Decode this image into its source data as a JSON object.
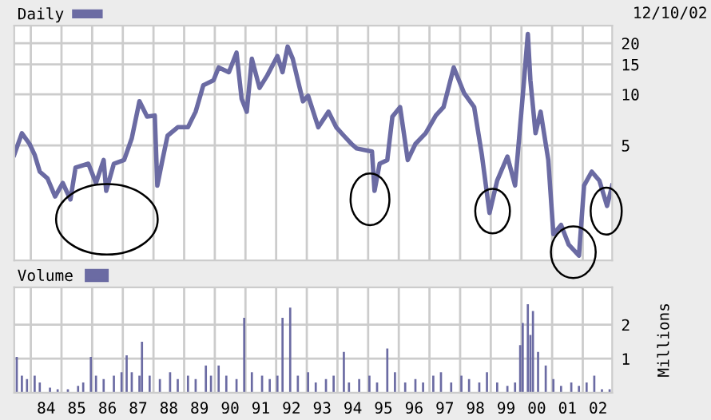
{
  "chart_data": [
    {
      "type": "line",
      "log": "y",
      "legend": "top left",
      "grid": true,
      "tick_labels": "y",
      "annotations": [
        "12/10/02"
      ],
      "xlim": [
        "1983-06",
        "2002-12"
      ],
      "ylim": [
        1.05,
        25.4
      ],
      "xticks": [
        {
          "value": "1984",
          "label": null
        },
        {
          "value": "1985",
          "label": null
        },
        {
          "value": "1986",
          "label": null
        },
        {
          "value": "1987",
          "label": null
        },
        {
          "value": "1988",
          "label": null
        },
        {
          "value": "1989",
          "label": null
        },
        {
          "value": "1990",
          "label": null
        },
        {
          "value": "1991",
          "label": null
        },
        {
          "value": "1992",
          "label": null
        },
        {
          "value": "1993",
          "label": null
        },
        {
          "value": "1994",
          "label": null
        },
        {
          "value": "1995",
          "label": null
        },
        {
          "value": "1996",
          "label": null
        },
        {
          "value": "1997",
          "label": null
        },
        {
          "value": "1998",
          "label": null
        },
        {
          "value": "1999",
          "label": null
        },
        {
          "value": "2000",
          "label": null
        },
        {
          "value": "2001",
          "label": null
        },
        {
          "value": "2002",
          "label": null
        }
      ],
      "yticks": [
        5,
        10,
        15,
        20
      ],
      "series": [
        {
          "name": "Daily",
          "color": "#6b6ba3",
          "x": [
            "1983-06",
            "1983-09",
            "1983-12",
            "1984-02",
            "1984-04",
            "1984-07",
            "1984-10",
            "1985-01",
            "1985-04",
            "1985-06",
            "1985-11",
            "1986-02",
            "1986-05",
            "1986-06",
            "1986-09",
            "1987-01",
            "1987-04",
            "1987-07",
            "1987-10",
            "1988-01",
            "1988-02",
            "1988-04",
            "1988-06",
            "1988-10",
            "1989-02",
            "1989-05",
            "1989-08",
            "1989-12",
            "1990-02",
            "1990-06",
            "1990-09",
            "1990-11",
            "1991-01",
            "1991-03",
            "1991-06",
            "1991-09",
            "1992-01",
            "1992-03",
            "1992-05",
            "1992-07",
            "1992-09",
            "1992-11",
            "1993-01",
            "1993-05",
            "1993-09",
            "1993-12",
            "1994-03",
            "1994-06",
            "1994-08",
            "1995-02",
            "1995-03",
            "1995-05",
            "1995-08",
            "1995-10",
            "1996-01",
            "1996-04",
            "1996-07",
            "1996-11",
            "1997-03",
            "1997-06",
            "1997-10",
            "1998-02",
            "1998-06",
            "1998-09",
            "1998-12",
            "1999-03",
            "1999-07",
            "1999-10",
            "2000-01",
            "2000-03",
            "2000-04",
            "2000-06",
            "2000-08",
            "2000-11",
            "2001-01",
            "2001-04",
            "2001-07",
            "2001-11",
            "2002-01",
            "2002-04",
            "2002-07",
            "2002-10",
            "2002-12"
          ],
          "values": [
            4.4,
            5.9,
            5.1,
            4.4,
            3.5,
            3.2,
            2.5,
            3.0,
            2.4,
            3.7,
            3.9,
            3.0,
            4.1,
            2.7,
            3.9,
            4.1,
            5.5,
            9.1,
            7.4,
            7.5,
            2.9,
            4.1,
            5.7,
            6.4,
            6.4,
            7.9,
            11.3,
            12.1,
            14.4,
            13.5,
            17.6,
            9.4,
            7.9,
            16.2,
            10.9,
            12.9,
            16.8,
            13.5,
            19.1,
            16.2,
            12.1,
            9.1,
            9.8,
            6.4,
            7.9,
            6.4,
            5.7,
            5.1,
            4.8,
            4.6,
            2.7,
            3.9,
            4.1,
            7.4,
            8.4,
            4.1,
            5.1,
            5.9,
            7.5,
            8.4,
            14.4,
            10.2,
            8.4,
            4.4,
            2.0,
            3.1,
            4.3,
            2.9,
            9.8,
            22.7,
            12.1,
            5.9,
            7.9,
            4.1,
            1.5,
            1.7,
            1.3,
            1.12,
            2.9,
            3.5,
            3.1,
            2.2,
            2.9
          ]
        }
      ]
    },
    {
      "type": "bar",
      "legend": "top left",
      "grid": true,
      "ylabel": "Millions",
      "xlim": [
        "1983-06",
        "2002-12"
      ],
      "ylim": [
        0,
        3.1
      ],
      "xticks": [
        {
          "value": "1984",
          "label": null
        },
        {
          "value": "1984-07-01",
          "label": "84"
        },
        {
          "value": "1985",
          "label": null
        },
        {
          "value": "1985-07-01",
          "label": "85"
        },
        {
          "value": "1986",
          "label": null
        },
        {
          "value": "1986-07-01",
          "label": "86"
        },
        {
          "value": "1987",
          "label": null
        },
        {
          "value": "1987-07-01",
          "label": "87"
        },
        {
          "value": "1988",
          "label": null
        },
        {
          "value": "1988-07-01",
          "label": "88"
        },
        {
          "value": "1989",
          "label": null
        },
        {
          "value": "1989-07-01",
          "label": "89"
        },
        {
          "value": "1990",
          "label": null
        },
        {
          "value": "1990-07-01",
          "label": "90"
        },
        {
          "value": "1991",
          "label": null
        },
        {
          "value": "1991-07-01",
          "label": "91"
        },
        {
          "value": "1992",
          "label": null
        },
        {
          "value": "1992-07-01",
          "label": "92"
        },
        {
          "value": "1993",
          "label": null
        },
        {
          "value": "1993-07-01",
          "label": "93"
        },
        {
          "value": "1994",
          "label": null
        },
        {
          "value": "1994-07-01",
          "label": "94"
        },
        {
          "value": "1995",
          "label": null
        },
        {
          "value": "1995-07-01",
          "label": "95"
        },
        {
          "value": "1996",
          "label": null
        },
        {
          "value": "1996-07-01",
          "label": "96"
        },
        {
          "value": "1997",
          "label": null
        },
        {
          "value": "1997-07-01",
          "label": "97"
        },
        {
          "value": "1998",
          "label": null
        },
        {
          "value": "1998-07-01",
          "label": "98"
        },
        {
          "value": "1999",
          "label": null
        },
        {
          "value": "1999-07-01",
          "label": "99"
        },
        {
          "value": "2000",
          "label": null
        },
        {
          "value": "2000-07-01",
          "label": "00"
        },
        {
          "value": "2001",
          "label": null
        },
        {
          "value": "2001-07-01",
          "label": "01"
        },
        {
          "value": "2002",
          "label": null
        },
        {
          "value": "2002-07-01",
          "label": "02"
        }
      ],
      "yticks": [
        1,
        2
      ],
      "series": [
        {
          "name": "Volume",
          "color": "#6b6ba3",
          "x": [
            "1983-07",
            "1983-09",
            "1983-11",
            "1984-02",
            "1984-04",
            "1984-08",
            "1984-11",
            "1985-03",
            "1985-07",
            "1985-09",
            "1985-12",
            "1986-02",
            "1986-05",
            "1986-09",
            "1986-12",
            "1987-02",
            "1987-04",
            "1987-07",
            "1987-08",
            "1987-11",
            "1988-03",
            "1988-07",
            "1988-10",
            "1989-02",
            "1989-05",
            "1989-09",
            "1989-11",
            "1990-02",
            "1990-05",
            "1990-09",
            "1990-12",
            "1991-03",
            "1991-07",
            "1991-10",
            "1992-01",
            "1992-03",
            "1992-06",
            "1992-09",
            "1993-01",
            "1993-04",
            "1993-08",
            "1993-11",
            "1994-03",
            "1994-05",
            "1994-09",
            "1995-01",
            "1995-04",
            "1995-08",
            "1995-11",
            "1996-03",
            "1996-07",
            "1996-10",
            "1997-02",
            "1997-05",
            "1997-09",
            "1998-01",
            "1998-04",
            "1998-08",
            "1998-11",
            "1999-03",
            "1999-07",
            "1999-10",
            "1999-12",
            "2000-01",
            "2000-03",
            "2000-04",
            "2000-05",
            "2000-07",
            "2000-10",
            "2001-01",
            "2001-04",
            "2001-08",
            "2001-11",
            "2002-02",
            "2002-05",
            "2002-08",
            "2002-11"
          ],
          "values": [
            1.05,
            0.5,
            0.4,
            0.5,
            0.3,
            0.15,
            0.1,
            0.1,
            0.2,
            0.3,
            1.05,
            0.5,
            0.4,
            0.5,
            0.6,
            1.1,
            0.6,
            0.5,
            1.5,
            0.5,
            0.4,
            0.6,
            0.4,
            0.5,
            0.4,
            0.8,
            0.5,
            0.8,
            0.5,
            0.4,
            2.2,
            0.6,
            0.5,
            0.4,
            0.5,
            2.2,
            2.5,
            0.5,
            0.6,
            0.3,
            0.4,
            0.5,
            1.2,
            0.3,
            0.4,
            0.5,
            0.3,
            1.3,
            0.6,
            0.3,
            0.4,
            0.3,
            0.5,
            0.6,
            0.3,
            0.5,
            0.4,
            0.3,
            0.6,
            0.3,
            0.2,
            0.3,
            1.4,
            2.05,
            2.6,
            1.7,
            2.4,
            1.2,
            0.8,
            0.4,
            0.2,
            0.3,
            0.2,
            0.3,
            0.5,
            0.1,
            0.1
          ]
        }
      ]
    }
  ]
}
